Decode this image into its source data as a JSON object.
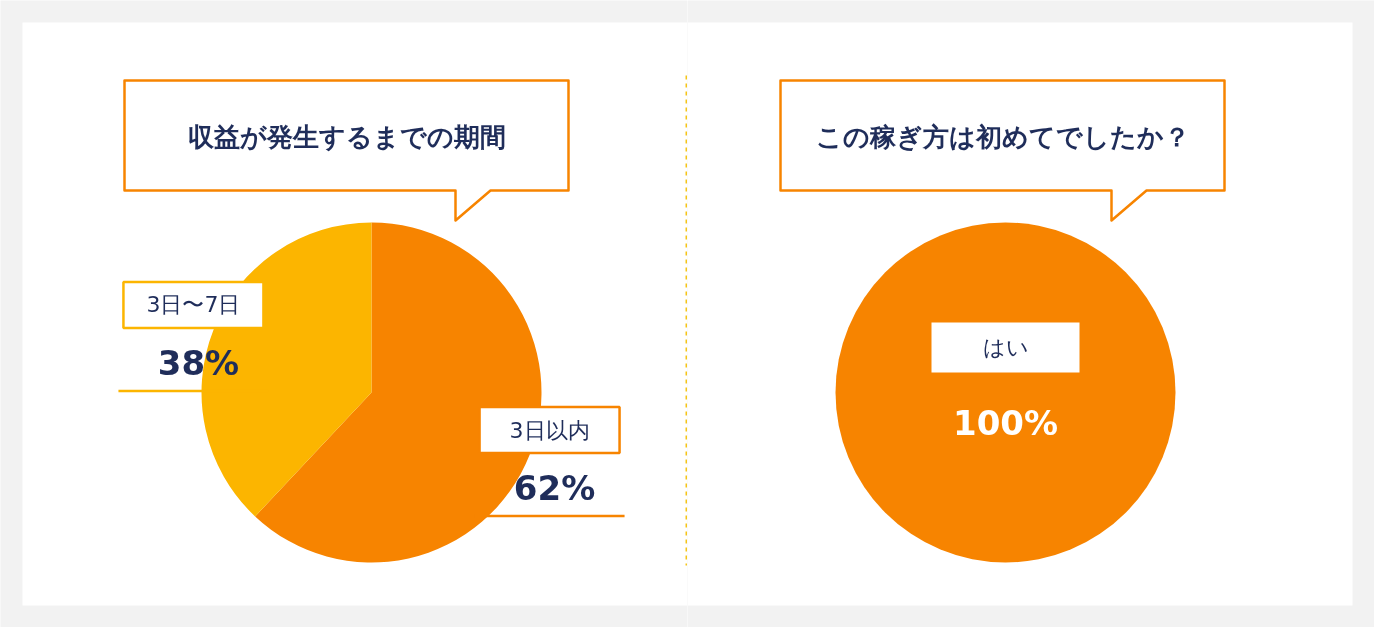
{
  "chart_data": [
    {
      "type": "pie",
      "title": "収益が発生するまでの期間",
      "categories": [
        "3日以内",
        "3日〜7日"
      ],
      "values": [
        62,
        38
      ],
      "colors": [
        "#f78400",
        "#fcb500"
      ],
      "value_labels": [
        "62%",
        "38%"
      ]
    },
    {
      "type": "pie",
      "title": "この稼ぎ方は初めてでしたか？",
      "categories": [
        "はい"
      ],
      "values": [
        100
      ],
      "colors": [
        "#f78400"
      ],
      "value_labels": [
        "100%"
      ]
    }
  ]
}
